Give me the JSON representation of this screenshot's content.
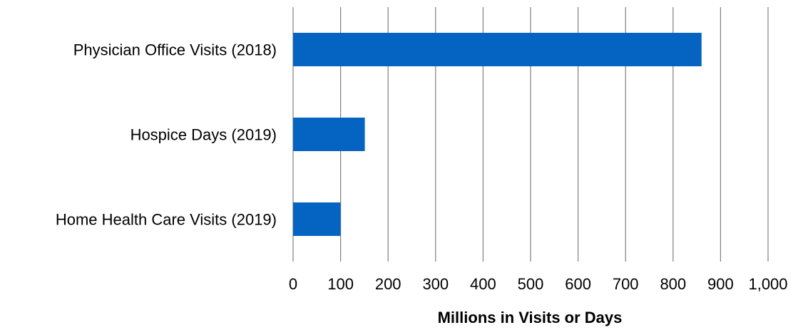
{
  "chart_data": {
    "type": "bar",
    "orientation": "horizontal",
    "categories": [
      "Physician Office Visits (2018)",
      "Hospice Days (2019)",
      "Home Health Care Visits (2019)"
    ],
    "values": [
      860,
      151,
      100
    ],
    "xlabel": "Millions in Visits or Days",
    "ylabel": "",
    "xlim": [
      0,
      1000
    ],
    "x_ticks": [
      0,
      100,
      200,
      300,
      400,
      500,
      600,
      700,
      800,
      900,
      1000
    ],
    "x_tick_labels": [
      "0",
      "100",
      "200",
      "300",
      "400",
      "500",
      "600",
      "700",
      "800",
      "900",
      "1,000"
    ],
    "grid": "vertical",
    "legend": "none",
    "bar_color": "#0563C1"
  }
}
